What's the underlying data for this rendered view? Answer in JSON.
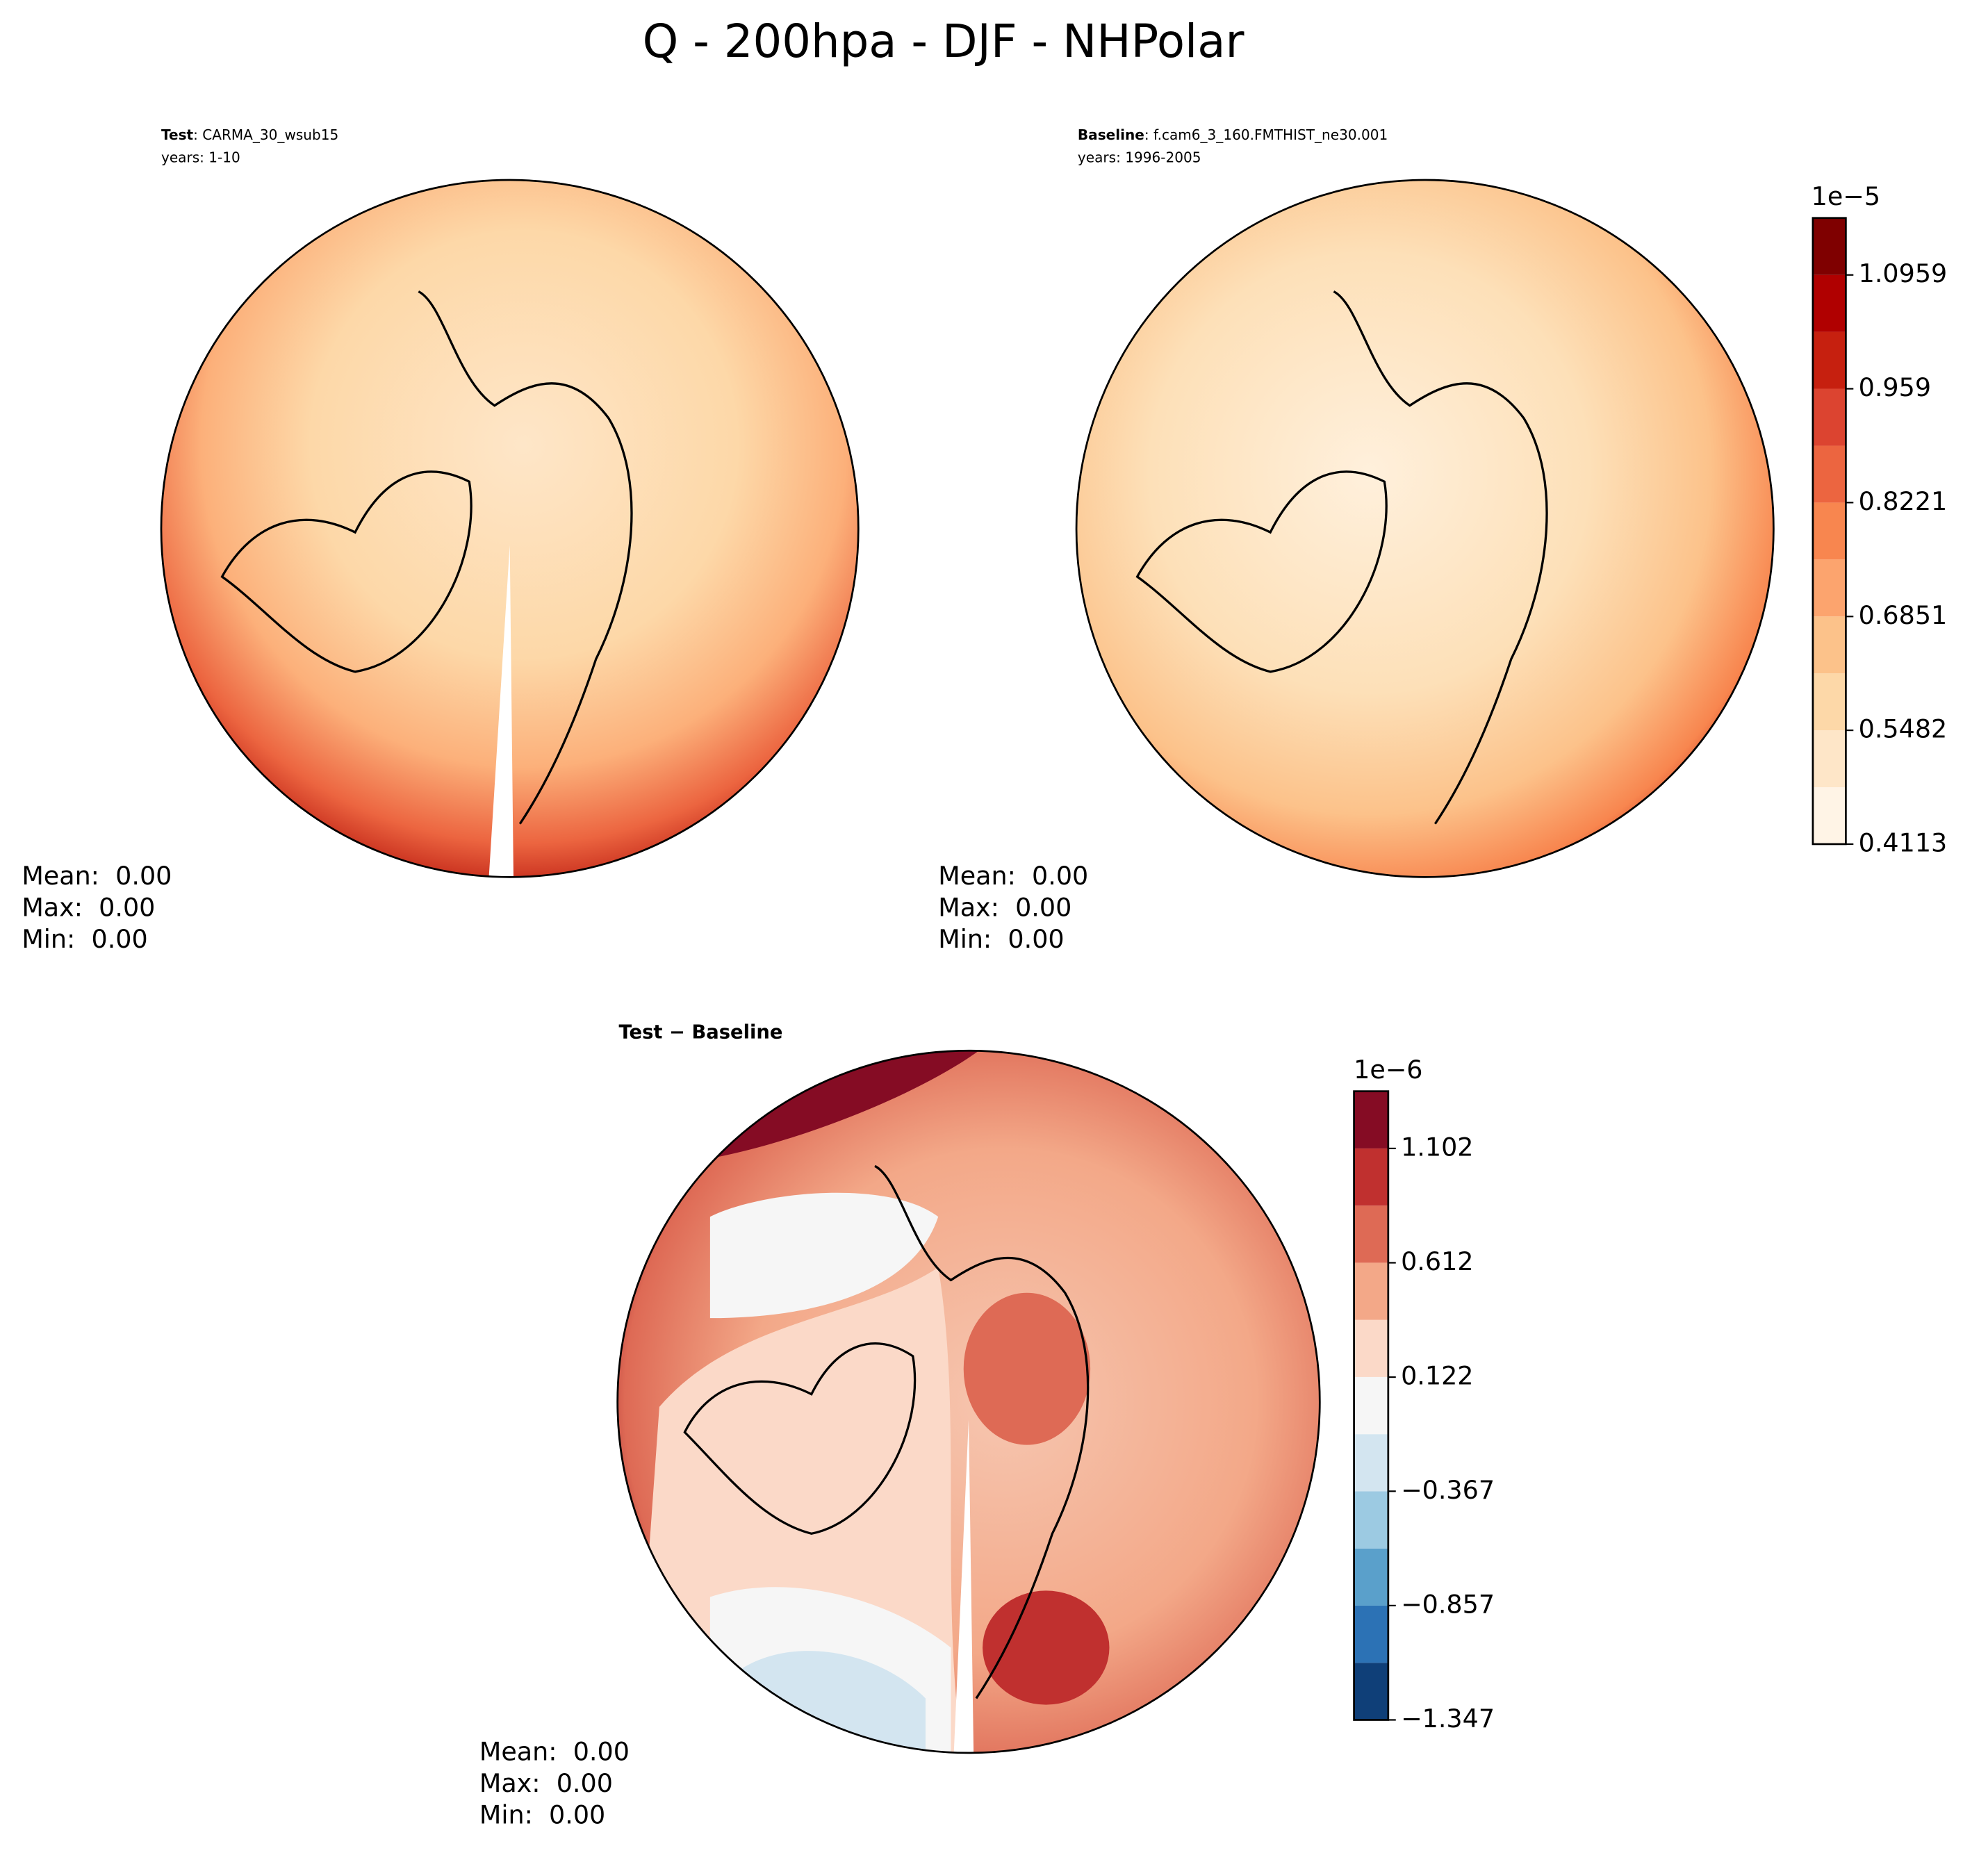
{
  "title": "Q - 200hpa - DJF - NHPolar",
  "chart_data": [
    {
      "type": "contour-map",
      "label": "Test",
      "case": ": CARMA_30_wsub15",
      "years": "years: 1-10",
      "stats": [
        "Mean:  0.00",
        "Max:  0.00",
        "Min:  0.00"
      ]
    },
    {
      "type": "contour-map",
      "label": "Baseline",
      "case": ": f.cam6_3_160.FMTHIST_ne30.001",
      "years": "years: 1996-2005",
      "stats": [
        "Mean:  0.00",
        "Max:  0.00",
        "Min:  0.00"
      ],
      "colorbar": {
        "offset_label": "1e−5",
        "ylim": [
          0.4113,
          1.1644
        ],
        "yticks": [
          0.4113,
          0.5482,
          0.6851,
          0.8221,
          0.959,
          1.0959
        ],
        "colors": [
          "#fff4e6",
          "#fee6c8",
          "#fdd8a8",
          "#fcc28a",
          "#fca46e",
          "#f8864f",
          "#ec6540",
          "#dc4430",
          "#c6200f",
          "#b00000",
          "#7f0000"
        ]
      }
    },
    {
      "type": "contour-map",
      "label": "Test − Baseline",
      "stats": [
        "Mean:  0.00",
        "Max:  0.00",
        "Min:  0.00"
      ],
      "colorbar": {
        "offset_label": "1e−6",
        "ylim": [
          -1.347,
          1.347
        ],
        "yticks": [
          {
            "value": -1.347,
            "label": "−1.347"
          },
          {
            "value": -0.857,
            "label": "−0.857"
          },
          {
            "value": -0.367,
            "label": "−0.367"
          },
          0.122,
          0.612,
          1.102
        ],
        "colors": [
          "#0f3f78",
          "#2c72b5",
          "#5aa0cb",
          "#9ccae2",
          "#d3e5f0",
          "#f6f6f6",
          "#fbd9c8",
          "#f3a888",
          "#de6a55",
          "#c0302f",
          "#850c24"
        ]
      }
    }
  ]
}
